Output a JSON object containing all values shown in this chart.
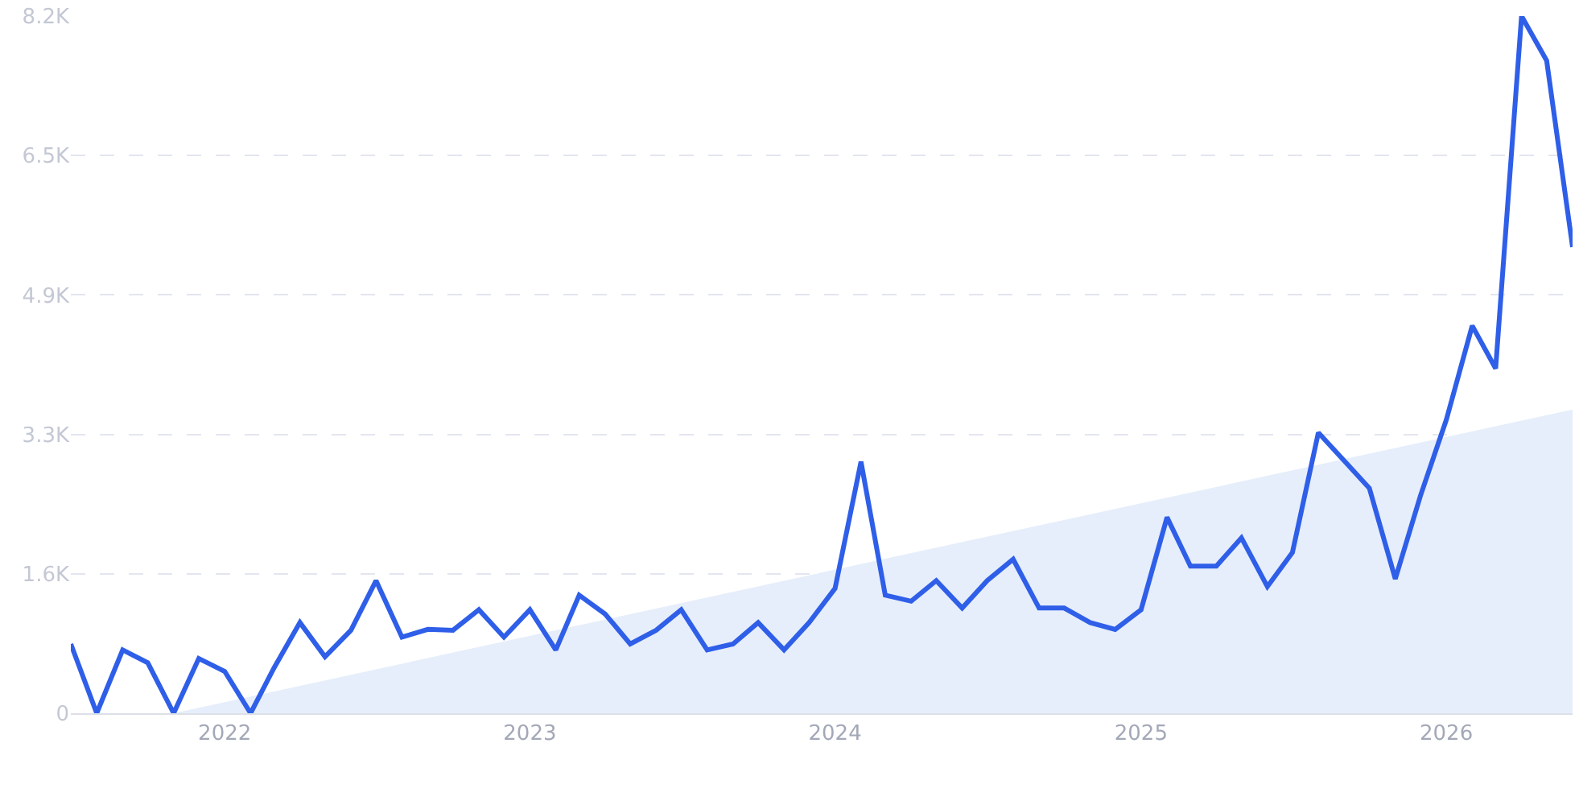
{
  "chart_data": {
    "type": "line",
    "x": [
      "2021-07",
      "2021-08",
      "2021-09",
      "2021-10",
      "2021-11",
      "2021-12",
      "2022-01",
      "2022-02",
      "2022-03",
      "2022-04",
      "2022-05",
      "2022-06",
      "2022-07",
      "2022-08",
      "2022-09",
      "2022-10",
      "2022-11",
      "2022-12",
      "2023-01",
      "2023-02",
      "2023-03",
      "2023-04",
      "2023-05",
      "2023-06",
      "2023-07",
      "2023-08",
      "2023-09",
      "2023-10",
      "2023-11",
      "2023-12",
      "2024-01",
      "2024-02",
      "2024-03",
      "2024-04",
      "2024-05",
      "2024-06",
      "2024-07",
      "2024-08",
      "2024-09",
      "2024-10",
      "2024-11",
      "2024-12",
      "2025-01",
      "2025-02",
      "2025-03",
      "2025-04",
      "2025-05",
      "2025-06",
      "2025-07",
      "2025-08",
      "2025-09",
      "2025-10",
      "2025-11",
      "2025-12",
      "2026-01",
      "2026-02",
      "2026-03",
      "2026-04",
      "2026-05",
      "2026-06"
    ],
    "series": [
      {
        "type": "area",
        "color": "#e6eefb",
        "x": [
          "2021-11",
          "2026-06"
        ],
        "values": [
          0,
          3550
        ]
      },
      {
        "color": "#2f5fe8",
        "values": [
          810,
          0,
          740,
          590,
          0,
          640,
          490,
          0,
          530,
          1060,
          660,
          970,
          1550,
          890,
          980,
          970,
          1210,
          890,
          1210,
          740,
          1380,
          1160,
          810,
          970,
          1210,
          740,
          810,
          1060,
          740,
          1060,
          1460,
          2940,
          1380,
          1310,
          1550,
          1230,
          1550,
          1800,
          1230,
          1230,
          1060,
          980,
          1210,
          2290,
          1720,
          1720,
          2050,
          1480,
          1880,
          3280,
          2950,
          2630,
          1570,
          2540,
          3430,
          4530,
          4030,
          8150,
          7630,
          5450
        ]
      }
    ],
    "xlim": [
      "2021-07",
      "2026-06"
    ],
    "xticks": [
      {
        "value": "2022-01",
        "label": "2022"
      },
      {
        "value": "2023-01",
        "label": "2023"
      },
      {
        "value": "2024-01",
        "label": "2024"
      },
      {
        "value": "2025-01",
        "label": "2025"
      },
      {
        "value": "2026-01",
        "label": "2026"
      }
    ],
    "ylim": [
      0,
      8150
    ],
    "yticks": [
      0,
      {
        "value": 1630,
        "label": "1.6K"
      },
      {
        "value": 3260,
        "label": "3.3K"
      },
      {
        "value": 4890,
        "label": "4.9K"
      },
      {
        "value": 6520,
        "label": "6.5K"
      },
      {
        "value": 8150,
        "label": "8.2K"
      }
    ],
    "grid": "y",
    "line_style": "solid",
    "marker": "none"
  }
}
